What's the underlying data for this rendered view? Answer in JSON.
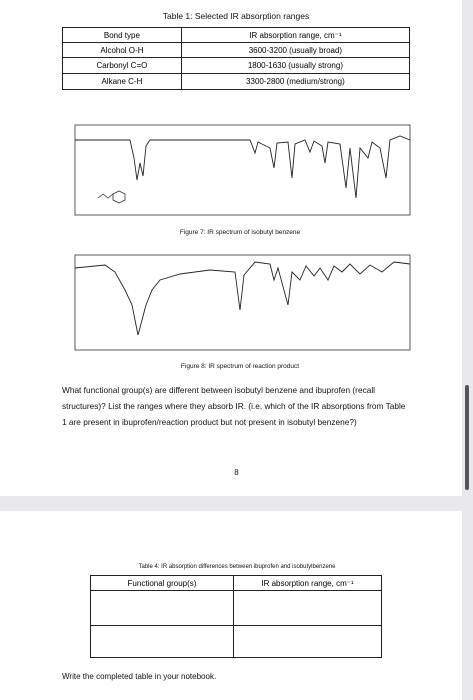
{
  "table1": {
    "title": "Table 1: Selected IR absorption ranges",
    "header": [
      "Bond type",
      "IR absorption range, cm⁻¹"
    ],
    "rows": [
      [
        "Alcohol O-H",
        "3600-3200 (usually broad)"
      ],
      [
        "Carbonyl C=O",
        "1800-1630 (usually strong)"
      ],
      [
        "Alkane C-H",
        "3300-2800 (medium/strong)"
      ]
    ]
  },
  "figures": [
    {
      "caption": "Figure 7: IR spectrum of isobutyl benzene"
    },
    {
      "caption": "Figure 8: IR spectrum of reaction product"
    }
  ],
  "question": "What functional group(s) are different between isobutyl benzene and ibuprofen (recall structures)? List the ranges where they absorb IR. (i.e. which of the IR absorptions from Table 1 are present in ibuprofen/reaction product but not present in isobutyl benzene?)",
  "page_number": "8",
  "table4": {
    "title": "Table 4: IR absorption differences between ibuprofen and isobutylbenzene",
    "header": [
      "Functional group(s)",
      "IR absorption range, cm⁻¹"
    ]
  },
  "instruction": "Write the completed table in your notebook."
}
